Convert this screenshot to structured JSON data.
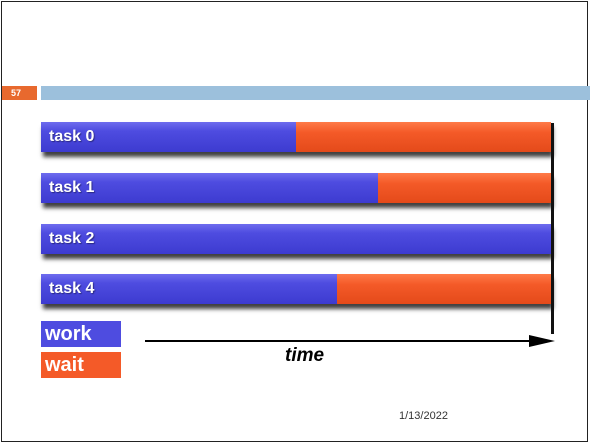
{
  "slide": {
    "page_number": "57",
    "date": "1/13/2022"
  },
  "chart_data": {
    "type": "bar",
    "categories": [
      "task 0",
      "task 1",
      "task 2",
      "task 4"
    ],
    "series": [
      {
        "name": "work",
        "values": [
          50,
          66,
          100,
          58
        ]
      },
      {
        "name": "wait",
        "values": [
          50,
          34,
          0,
          42
        ]
      }
    ],
    "xlabel": "time",
    "ylim": [
      0,
      100
    ],
    "legend_position": "bottom-left"
  },
  "legend": {
    "work_label": "work",
    "wait_label": "wait"
  },
  "axis": {
    "time_label": "time"
  },
  "colors": {
    "work": "#4e4ce0",
    "wait": "#f45a28",
    "header_bar": "#9cc0dc",
    "badge": "#e8692e"
  }
}
